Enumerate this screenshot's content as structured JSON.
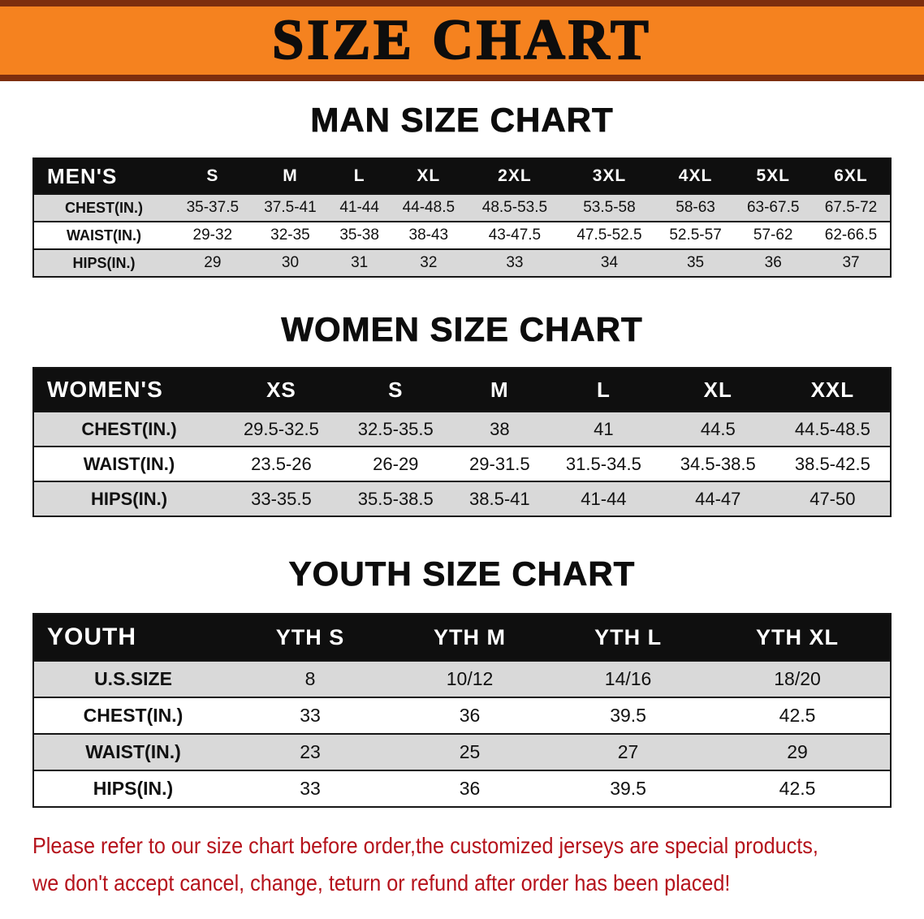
{
  "banner": {
    "title": "SIZE CHART"
  },
  "chart_data": [
    {
      "type": "table",
      "title": "MAN SIZE CHART",
      "columns": [
        "MEN'S",
        "S",
        "M",
        "L",
        "XL",
        "2XL",
        "3XL",
        "4XL",
        "5XL",
        "6XL"
      ],
      "rows": [
        [
          "CHEST(IN.)",
          "35-37.5",
          "37.5-41",
          "41-44",
          "44-48.5",
          "48.5-53.5",
          "53.5-58",
          "58-63",
          "63-67.5",
          "67.5-72"
        ],
        [
          "WAIST(IN.)",
          "29-32",
          "32-35",
          "35-38",
          "38-43",
          "43-47.5",
          "47.5-52.5",
          "52.5-57",
          "57-62",
          "62-66.5"
        ],
        [
          "HIPS(IN.)",
          "29",
          "30",
          "31",
          "32",
          "33",
          "34",
          "35",
          "36",
          "37"
        ]
      ]
    },
    {
      "type": "table",
      "title": "WOMEN SIZE CHART",
      "columns": [
        "WOMEN'S",
        "XS",
        "S",
        "M",
        "L",
        "XL",
        "XXL"
      ],
      "rows": [
        [
          "CHEST(IN.)",
          "29.5-32.5",
          "32.5-35.5",
          "38",
          "41",
          "44.5",
          "44.5-48.5"
        ],
        [
          "WAIST(IN.)",
          "23.5-26",
          "26-29",
          "29-31.5",
          "31.5-34.5",
          "34.5-38.5",
          "38.5-42.5"
        ],
        [
          "HIPS(IN.)",
          "33-35.5",
          "35.5-38.5",
          "38.5-41",
          "41-44",
          "44-47",
          "47-50"
        ]
      ]
    },
    {
      "type": "table",
      "title": "YOUTH SIZE CHART",
      "columns": [
        "YOUTH",
        "YTH S",
        "YTH M",
        "YTH L",
        "YTH XL"
      ],
      "rows": [
        [
          "U.S.SIZE",
          "8",
          "10/12",
          "14/16",
          "18/20"
        ],
        [
          "CHEST(IN.)",
          "33",
          "36",
          "39.5",
          "42.5"
        ],
        [
          "WAIST(IN.)",
          "23",
          "25",
          "27",
          "29"
        ],
        [
          "HIPS(IN.)",
          "33",
          "36",
          "39.5",
          "42.5"
        ]
      ]
    }
  ],
  "disclaimer": {
    "line1": "Please refer to our size chart before order,the customized jerseys are special products,",
    "line2": "we don't accept cancel, change, teturn or refund after order has been placed!"
  },
  "colors": {
    "banner_bg": "#f5821f",
    "banner_edge": "#7d2e0e",
    "table_header_bg": "#0f0f0f",
    "row_stripe": "#d9d9d9",
    "disclaimer_text": "#b5121b"
  }
}
